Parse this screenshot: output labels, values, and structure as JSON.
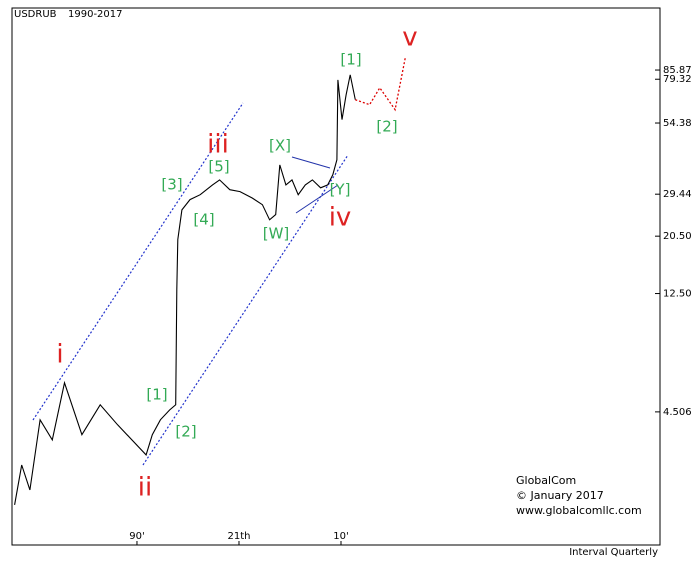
{
  "chart_data": {
    "type": "line",
    "title": "USDRUB",
    "subtitle": "1990-2017",
    "log_scale": true,
    "grid": false,
    "x": [
      1978.0,
      1978.7,
      1979.5,
      1980.5,
      1981.7,
      1982.9,
      1984.6,
      1986.4,
      1988.1,
      1990.9,
      1991.5,
      1992.3,
      1993.2,
      1993.8,
      1993.9,
      1994.0,
      1994.4,
      1995.2,
      1996.2,
      1997.4,
      1998.1,
      1999.1,
      2000.1,
      2001.3,
      2002.3,
      2003.0,
      2003.6,
      2004.0,
      2004.6,
      2005.2,
      2005.8,
      2006.5,
      2007.2,
      2008.0,
      2008.7,
      2009.2,
      2009.6,
      2009.7,
      2010.1,
      2010.5,
      2010.9,
      2011.4
    ],
    "series": [
      {
        "color": "#000000",
        "values": [
          2.02,
          2.85,
          2.3,
          4.21,
          3.54,
          5.79,
          3.7,
          4.79,
          4.03,
          3.11,
          3.7,
          4.21,
          4.58,
          4.79,
          12.9,
          19.9,
          25.7,
          28.1,
          29.3,
          31.9,
          33.3,
          30.6,
          30.1,
          28.5,
          26.9,
          23.6,
          24.7,
          37.9,
          31.9,
          33.3,
          29.3,
          31.9,
          33.3,
          31.1,
          31.9,
          34.8,
          39.6,
          78.9,
          56.0,
          69.3,
          82.4,
          66.5
        ]
      },
      {
        "color": "#dd0000",
        "dashed": true,
        "x": [
          2011.4,
          2012.8,
          2013.8,
          2015.3,
          2016.3
        ],
        "values": [
          66.5,
          63.7,
          73.7,
          61.0,
          95.5
        ]
      }
    ],
    "xlim": [
      1977.75,
      2041.27
    ],
    "xticks": [
      {
        "value": 1990,
        "label": "90'"
      },
      {
        "value": 2000,
        "label": "21th"
      },
      {
        "value": 2010,
        "label": "10'"
      }
    ],
    "ylim": [
      1.43,
      146.6
    ],
    "yticks": [
      85.87,
      79.32,
      54.38,
      {
        "value": 29.44,
        "label": "29.44"
      },
      {
        "value": 20.5,
        "label": "20.50"
      },
      {
        "value": 12.5,
        "label": "12.50"
      },
      4.506
    ],
    "annotations": [
      "i",
      "ii",
      "iii",
      "iv",
      "v",
      "[1]",
      "[2]",
      "[3]",
      "[4]",
      "[5]",
      "[X]",
      "[W]",
      "[Y]",
      "[1]",
      "[2]"
    ],
    "credits": [
      "GlobalCom",
      "© January 2017",
      "www.globalcomllc.com"
    ],
    "interval": "Interval Quarterly"
  }
}
